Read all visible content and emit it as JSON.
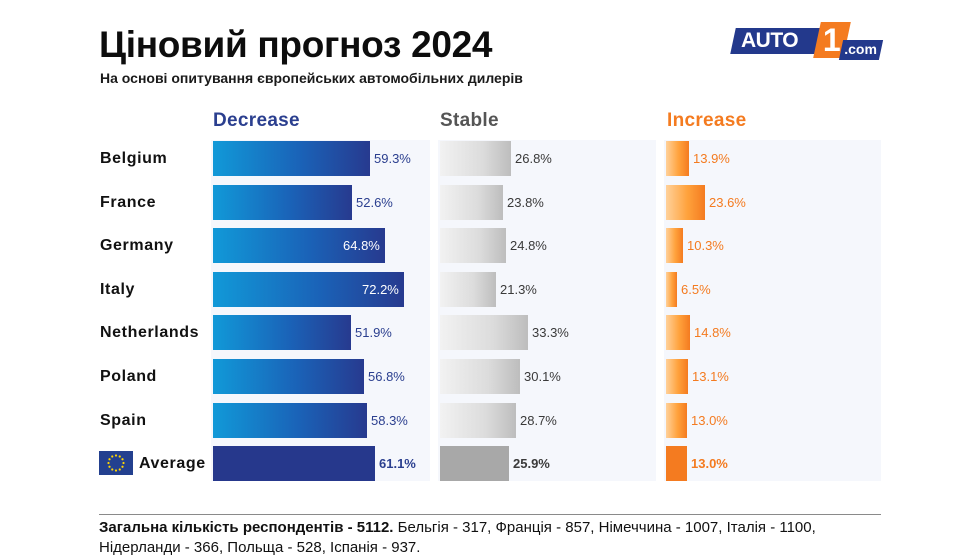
{
  "title": "Ціновий прогноз 2024",
  "subtitle": "На основі опитування європейських автомобільних дилерів",
  "logo": {
    "part1": "AUTO",
    "part2": "1",
    "part3": ".com"
  },
  "colors": {
    "decrease": "#273a8f",
    "decrease_light": "#1199d8",
    "stable": "#bdbdbd",
    "increase": "#f47b20",
    "header_decrease": "#2b3f8f",
    "header_stable": "#555555",
    "header_increase": "#f47b20"
  },
  "chart_data": {
    "type": "bar",
    "orientation": "horizontal",
    "categories": [
      "Belgium",
      "France",
      "Germany",
      "Italy",
      "Netherlands",
      "Poland",
      "Spain",
      "Average"
    ],
    "series": [
      {
        "name": "Decrease",
        "values": [
          59.3,
          52.6,
          64.8,
          72.2,
          51.9,
          56.8,
          58.3,
          61.1
        ]
      },
      {
        "name": "Stable",
        "values": [
          26.8,
          23.8,
          24.8,
          21.3,
          33.3,
          30.1,
          28.7,
          25.9
        ]
      },
      {
        "name": "Increase",
        "values": [
          13.9,
          23.6,
          10.3,
          6.5,
          14.8,
          13.1,
          13.0,
          13.0
        ]
      }
    ],
    "unit": "%",
    "average_icon": "eu-flag-icon"
  },
  "footnote": {
    "bold": "Загальна кількість респондентів - 5112.",
    "text": " Бельгія - 317, Франція - 857, Німеччина - 1007, Італія - 1100, Нідерланди - 366, Польща - 528, Іспанія - 937."
  }
}
